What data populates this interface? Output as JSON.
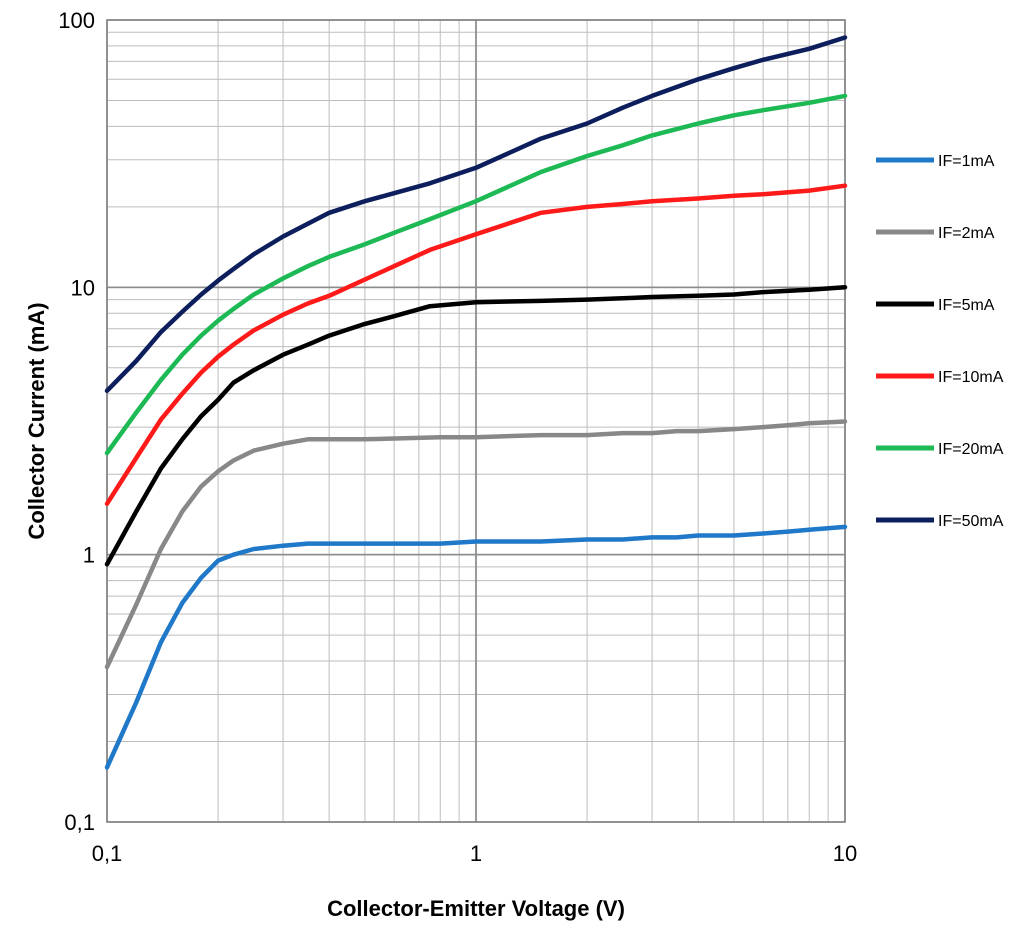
{
  "chart_data": {
    "type": "line",
    "title": "",
    "xlabel": "Collector-Emitter Voltage (V)",
    "ylabel": "Collector Current  (mA)",
    "x_scale": "log",
    "y_scale": "log",
    "xlim": [
      0.1,
      10
    ],
    "ylim": [
      0.1,
      100
    ],
    "x_tick_labels": [
      "0,1",
      "1",
      "10"
    ],
    "y_tick_labels": [
      "0,1",
      "1",
      "10",
      "100"
    ],
    "grid": true,
    "legend_position": "right",
    "series": [
      {
        "name": "IF=1mA",
        "color": "#1F78C8",
        "x": [
          0.1,
          0.12,
          0.14,
          0.16,
          0.18,
          0.2,
          0.22,
          0.25,
          0.3,
          0.35,
          0.5,
          0.8,
          1,
          1.5,
          2,
          2.5,
          3,
          3.5,
          4,
          5,
          6,
          7,
          8,
          10
        ],
        "y": [
          0.16,
          0.28,
          0.47,
          0.66,
          0.82,
          0.95,
          1.0,
          1.05,
          1.08,
          1.1,
          1.1,
          1.1,
          1.12,
          1.12,
          1.14,
          1.14,
          1.16,
          1.16,
          1.18,
          1.18,
          1.2,
          1.22,
          1.24,
          1.27
        ]
      },
      {
        "name": "IF=2mA",
        "color": "#888888",
        "x": [
          0.1,
          0.12,
          0.14,
          0.16,
          0.18,
          0.2,
          0.22,
          0.25,
          0.3,
          0.35,
          0.5,
          0.8,
          1,
          1.5,
          2,
          2.5,
          3,
          3.5,
          4,
          5,
          6,
          7,
          8,
          10
        ],
        "y": [
          0.38,
          0.65,
          1.05,
          1.45,
          1.8,
          2.05,
          2.25,
          2.45,
          2.6,
          2.7,
          2.7,
          2.75,
          2.75,
          2.8,
          2.8,
          2.85,
          2.85,
          2.9,
          2.9,
          2.95,
          3.0,
          3.05,
          3.1,
          3.15
        ]
      },
      {
        "name": "IF=5mA",
        "color": "#000000",
        "x": [
          0.1,
          0.12,
          0.14,
          0.16,
          0.18,
          0.2,
          0.22,
          0.25,
          0.3,
          0.35,
          0.4,
          0.5,
          0.6,
          0.75,
          1,
          1.5,
          2,
          2.5,
          3,
          4,
          5,
          6,
          8,
          10
        ],
        "y": [
          0.92,
          1.45,
          2.1,
          2.7,
          3.3,
          3.8,
          4.4,
          4.9,
          5.6,
          6.1,
          6.6,
          7.3,
          7.8,
          8.5,
          8.8,
          8.9,
          9.0,
          9.1,
          9.2,
          9.3,
          9.4,
          9.6,
          9.8,
          10.0
        ]
      },
      {
        "name": "IF=10mA",
        "color": "#FF1A1A",
        "x": [
          0.1,
          0.12,
          0.14,
          0.16,
          0.18,
          0.2,
          0.22,
          0.25,
          0.3,
          0.35,
          0.4,
          0.5,
          0.6,
          0.75,
          1,
          1.5,
          2,
          2.5,
          3,
          4,
          5,
          6,
          8,
          10
        ],
        "y": [
          1.55,
          2.3,
          3.2,
          4.0,
          4.8,
          5.5,
          6.1,
          6.9,
          7.9,
          8.7,
          9.3,
          10.7,
          12.0,
          13.8,
          15.8,
          19.0,
          20.0,
          20.5,
          21.0,
          21.5,
          22.0,
          22.3,
          23.0,
          24.0
        ]
      },
      {
        "name": "IF=20mA",
        "color": "#1DB954",
        "x": [
          0.1,
          0.12,
          0.14,
          0.16,
          0.18,
          0.2,
          0.22,
          0.25,
          0.3,
          0.35,
          0.4,
          0.5,
          0.6,
          0.75,
          1,
          1.5,
          2,
          2.5,
          3,
          4,
          5,
          6,
          8,
          10
        ],
        "y": [
          2.4,
          3.4,
          4.5,
          5.6,
          6.6,
          7.5,
          8.3,
          9.4,
          10.8,
          12.0,
          13.0,
          14.5,
          16.0,
          18.0,
          21.0,
          27.0,
          31.0,
          34.0,
          37.0,
          41.0,
          44.0,
          46.0,
          49.0,
          52.0
        ]
      },
      {
        "name": "IF=50mA",
        "color": "#0D1E5C",
        "x": [
          0.1,
          0.12,
          0.14,
          0.16,
          0.18,
          0.2,
          0.22,
          0.25,
          0.3,
          0.35,
          0.4,
          0.5,
          0.6,
          0.75,
          1,
          1.5,
          2,
          2.5,
          3,
          4,
          5,
          6,
          8,
          10
        ],
        "y": [
          4.1,
          5.3,
          6.8,
          8.1,
          9.4,
          10.6,
          11.7,
          13.3,
          15.5,
          17.3,
          19.0,
          21.0,
          22.5,
          24.5,
          28.0,
          36.0,
          41.0,
          47.0,
          52.0,
          60.0,
          66.0,
          71.0,
          78.0,
          86.0
        ]
      }
    ]
  }
}
